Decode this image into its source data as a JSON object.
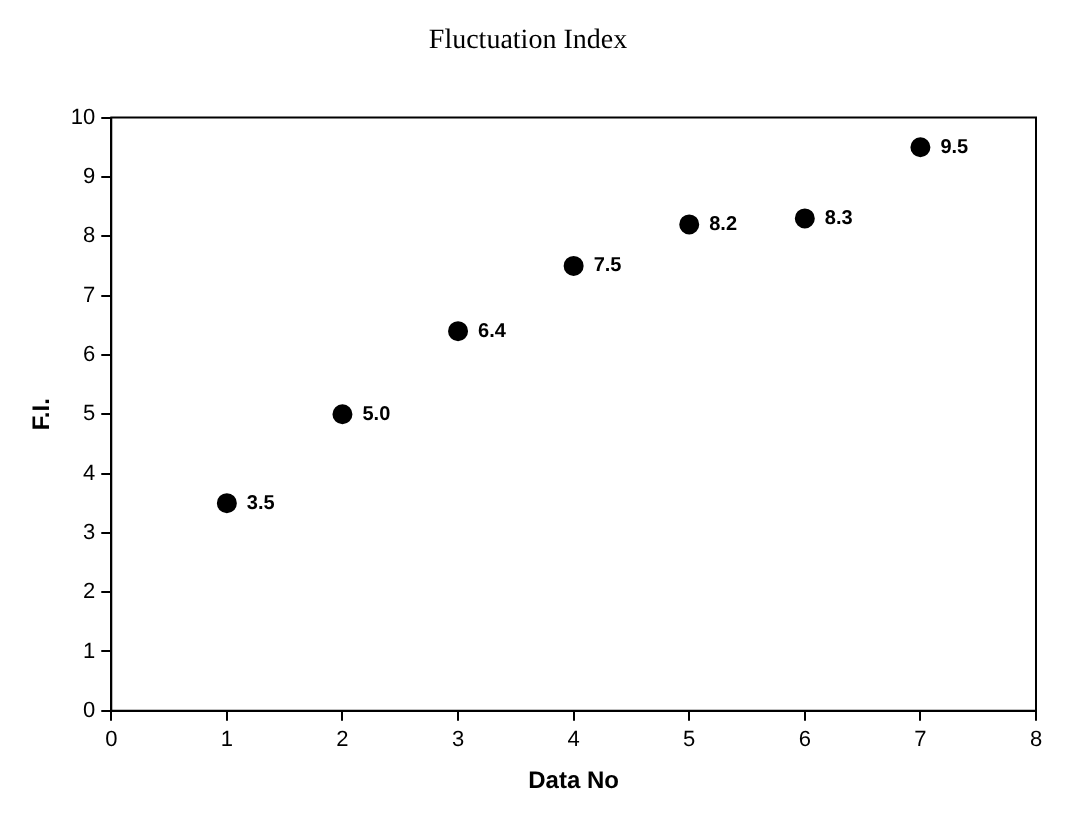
{
  "chart_data": {
    "type": "scatter",
    "title": "Fluctuation Index",
    "xlabel": "Data No",
    "ylabel": "F.I.",
    "x": [
      1,
      2,
      3,
      4,
      5,
      6,
      7
    ],
    "series": [
      {
        "color": "#000000",
        "values": [
          3.5,
          5.0,
          6.4,
          7.5,
          8.2,
          8.3,
          9.5
        ],
        "value_labels": [
          "3.5",
          "5.0",
          "6.4",
          "7.5",
          "8.2",
          "8.3",
          "9.5"
        ]
      }
    ],
    "xlim": [
      0,
      8
    ],
    "xticks": [
      0,
      1,
      2,
      3,
      4,
      5,
      6,
      7,
      8
    ],
    "ylim": [
      0,
      10
    ],
    "yticks": [
      0,
      1,
      2,
      3,
      4,
      5,
      6,
      7,
      8,
      9,
      10
    ],
    "grid": false,
    "legend": false,
    "marker": "circle"
  }
}
